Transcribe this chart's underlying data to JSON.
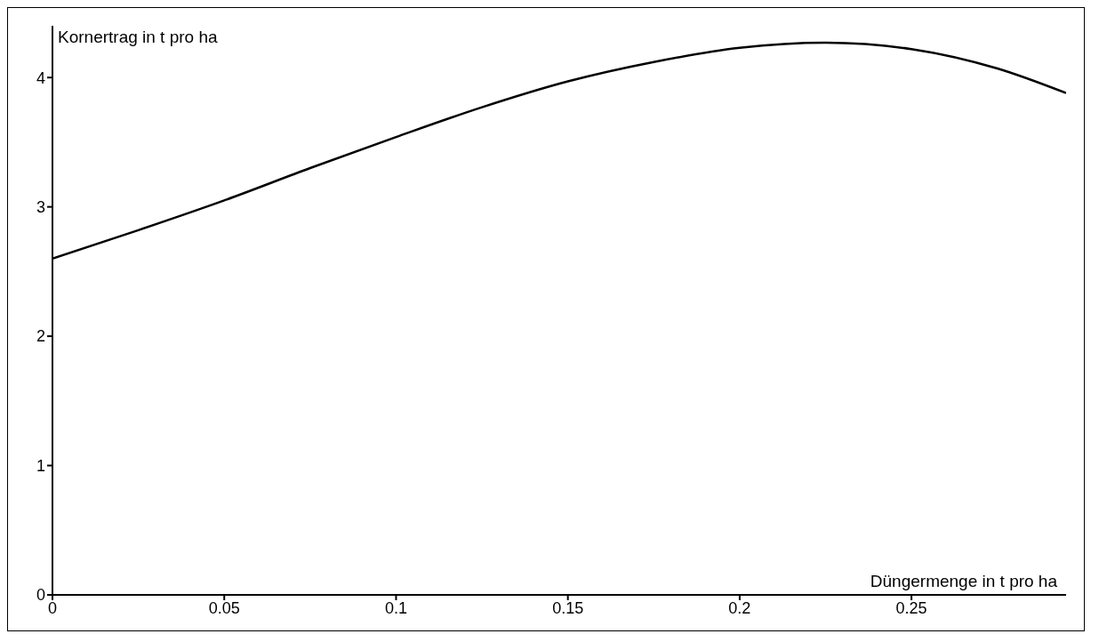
{
  "chart_data": {
    "type": "line",
    "xlabel": "Düngermenge in t pro ha",
    "ylabel": "Kornertrag in t pro ha",
    "x": [
      0,
      0.025,
      0.05,
      0.075,
      0.1,
      0.125,
      0.15,
      0.175,
      0.2,
      0.225,
      0.25,
      0.275,
      0.295
    ],
    "series": [
      {
        "color": "#000000",
        "values": [
          2.6,
          2.82,
          3.05,
          3.3,
          3.54,
          3.77,
          3.97,
          4.12,
          4.23,
          4.27,
          4.22,
          4.07,
          3.88
        ]
      }
    ],
    "xlim": [
      0,
      0.295
    ],
    "ylim": [
      0,
      4.4
    ],
    "xticks": [
      0,
      0.05,
      0.1,
      0.15,
      0.2,
      0.25
    ],
    "yticks": [
      0,
      1,
      2,
      3,
      4
    ],
    "grid": false,
    "legend": false,
    "marker": "none",
    "line_style": "solid"
  }
}
